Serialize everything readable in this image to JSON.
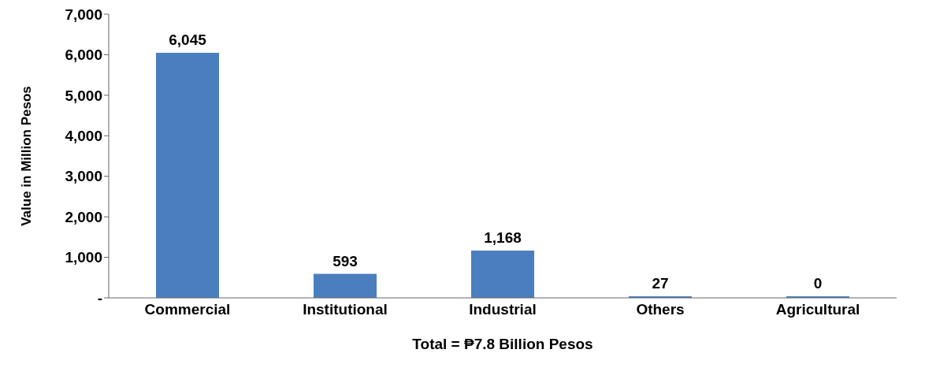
{
  "chart_data": {
    "type": "bar",
    "categories": [
      "Commercial",
      "Institutional",
      "Industrial",
      "Others",
      "Agricultural"
    ],
    "values": [
      6045,
      593,
      1168,
      27,
      0
    ],
    "color": "#4a7ebf",
    "ylabel": "Value in Million Pesos",
    "xlabel": "Total = ₱7.8 Billion Pesos",
    "ylim": [
      0,
      7000
    ],
    "yticks": [
      {
        "value": 0,
        "label": "-"
      },
      {
        "value": 1000,
        "label": "1,000"
      },
      {
        "value": 2000,
        "label": "2,000"
      },
      {
        "value": 3000,
        "label": "3,000"
      },
      {
        "value": 4000,
        "label": "4,000"
      },
      {
        "value": 5000,
        "label": "5,000"
      },
      {
        "value": 6000,
        "label": "6,000"
      },
      {
        "value": 7000,
        "label": "7,000"
      }
    ],
    "value_labels": [
      "6,045",
      "593",
      "1,168",
      "27",
      "0"
    ],
    "grid": false,
    "legend": false
  }
}
